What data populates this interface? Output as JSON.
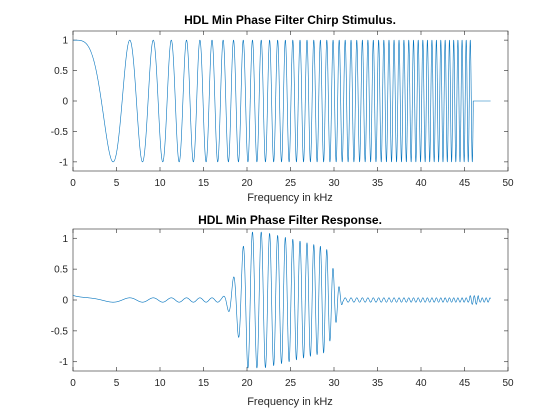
{
  "chart_data": [
    {
      "type": "line",
      "title": "HDL Min Phase Filter Chirp Stimulus.",
      "xlabel": "Frequency in kHz",
      "ylabel": "",
      "xlim": [
        0,
        50
      ],
      "ylim": [
        -1.15,
        1.15
      ],
      "xticks": [
        0,
        5,
        10,
        15,
        20,
        25,
        30,
        35,
        40,
        45,
        50
      ],
      "yticks": [
        -1,
        -0.5,
        0,
        0.5,
        1
      ],
      "grid": false,
      "color": "#0072BD",
      "series": [
        {
          "description": "Linear chirp, amplitude 1, oscillating from 0 kHz to about 46 kHz, then flat at 0 up to 48 kHz",
          "amplitude": 1,
          "x_start": 0,
          "x_end": 46,
          "x_flat_end": 48
        }
      ]
    },
    {
      "type": "line",
      "title": "HDL Min Phase Filter Response.",
      "xlabel": "Frequency in kHz",
      "ylabel": "",
      "xlim": [
        0,
        50
      ],
      "ylim": [
        -1.15,
        1.15
      ],
      "xticks": [
        0,
        5,
        10,
        15,
        20,
        25,
        30,
        35,
        40,
        45,
        50
      ],
      "yticks": [
        -1,
        -0.5,
        0,
        0.5,
        1
      ],
      "grid": false,
      "color": "#0072BD",
      "series": [
        {
          "description": "Band-pass filtered chirp; passband roughly 17 kHz to 31 kHz with peak amplitude about 1.1 near 21 kHz, small ripple elsewhere",
          "x_start": 0,
          "x_end": 48,
          "passband_kHz": [
            17,
            31
          ],
          "peak_amplitude": 1.1
        }
      ]
    }
  ]
}
